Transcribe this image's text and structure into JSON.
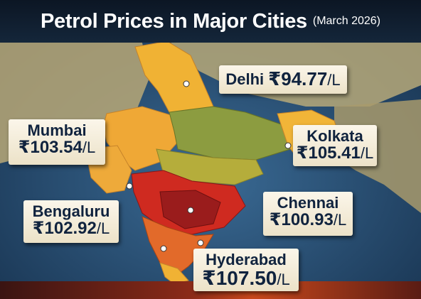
{
  "header": {
    "title": "Petrol Prices in Major Cities",
    "subtitle": "(March 2026)"
  },
  "cities": {
    "delhi": {
      "name": "Delhi",
      "price": "₹94.77",
      "unit": "/L"
    },
    "mumbai": {
      "name": "Mumbai",
      "price": "₹103.54",
      "unit": "/L"
    },
    "kolkata": {
      "name": "Kolkata",
      "price": "₹105.41",
      "unit": "/L"
    },
    "bengaluru": {
      "name": "Bengaluru",
      "price": "₹102.92",
      "unit": "/L"
    },
    "chennai": {
      "name": "Chennai",
      "price": "₹100.93",
      "unit": "/L"
    },
    "hyderabad": {
      "name": "Hyderabad",
      "price": "₹107.50",
      "unit": "/L"
    }
  },
  "colors": {
    "ocean": "#24507a",
    "land": "#b9a877",
    "north_yellow": "#f0b234",
    "central_green": "#8c9c40",
    "mid_olive": "#b5ad3b",
    "south_red": "#cf2a20",
    "south_dark_red": "#9a1c1c",
    "south_orange": "#e26a2a",
    "label_bg": "#f5eedb",
    "label_text": "#10233e"
  }
}
